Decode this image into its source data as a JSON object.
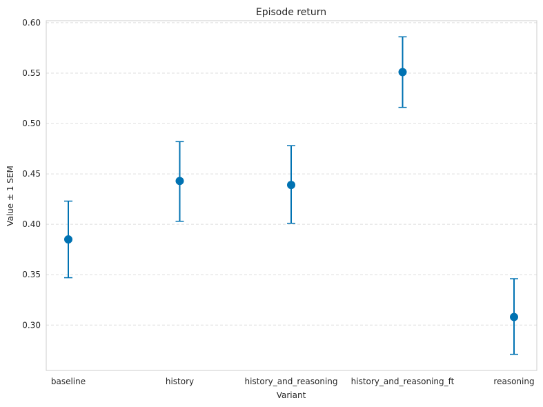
{
  "chart_data": {
    "type": "scatter",
    "title": "Episode return",
    "xlabel": "Variant",
    "ylabel": "Value ± 1 SEM",
    "categories": [
      "baseline",
      "history",
      "history_and_reasoning",
      "history_and_reasoning_ft",
      "reasoning"
    ],
    "series": [
      {
        "values": [
          0.385,
          0.443,
          0.439,
          0.551,
          0.308
        ],
        "lower": [
          0.347,
          0.403,
          0.401,
          0.516,
          0.271
        ],
        "upper": [
          0.423,
          0.482,
          0.478,
          0.586,
          0.346
        ]
      }
    ],
    "y_ticks": [
      "0.30",
      "0.35",
      "0.40",
      "0.45",
      "0.50",
      "0.55",
      "0.60"
    ],
    "ylim": [
      0.255,
      0.602
    ],
    "grid": "y-dashed",
    "color": "#0072b2"
  }
}
